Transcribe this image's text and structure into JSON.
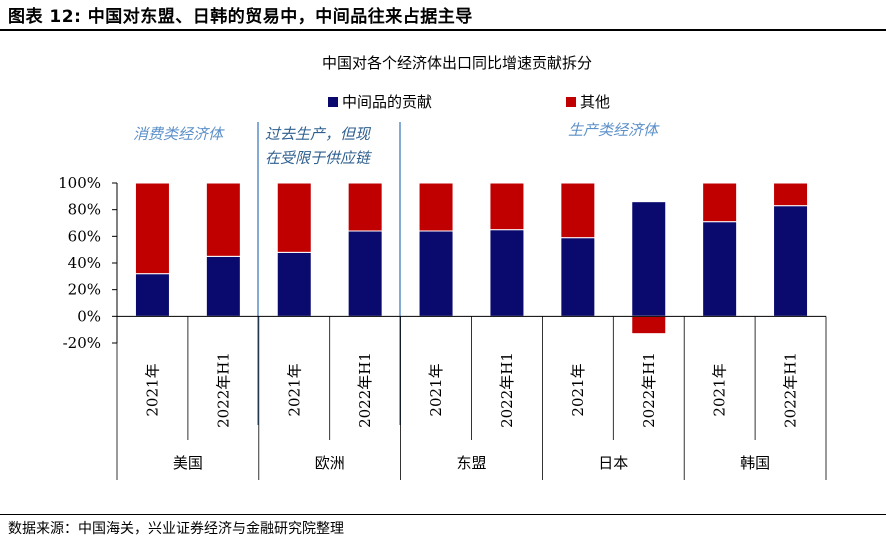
{
  "header": {
    "figure_title": "图表 12: 中国对东盟、日韩的贸易中，中间品往来占据主导",
    "source_note": "数据来源：中国海关，兴业证券经济与金融研究院整理"
  },
  "chart_data": {
    "type": "bar",
    "stacked": true,
    "title": "中国对各个经济体出口同比增速贡献拆分",
    "ylim": [
      -20,
      100
    ],
    "ytick_values": [
      -20,
      0,
      20,
      40,
      60,
      80,
      100
    ],
    "ytick_labels": [
      "-20%",
      "0%",
      "20%",
      "40%",
      "60%",
      "80%",
      "100%"
    ],
    "categories": [
      "2021年",
      "2022年H1",
      "2021年",
      "2022年H1",
      "2021年",
      "2022年H1",
      "2021年",
      "2022年H1",
      "2021年",
      "2022年H1"
    ],
    "groups": [
      "美国",
      "欧洲",
      "东盟",
      "日本",
      "韩国"
    ],
    "series": [
      {
        "name": "中间品的贡献",
        "color": "#0a0a6e",
        "values": [
          32,
          45,
          48,
          64,
          64,
          65,
          59,
          86,
          71,
          83
        ]
      },
      {
        "name": "其他",
        "color": "#c00000",
        "values": [
          68,
          55,
          52,
          36,
          36,
          35,
          41,
          -13,
          29,
          17
        ]
      }
    ],
    "annotations": [
      {
        "text": "消费类经济体",
        "color": "#5b8fc9"
      },
      {
        "text": "过去生产，但现",
        "color": "#2e5f8f"
      },
      {
        "text": "在受限于供应链",
        "color": "#2e5f8f"
      },
      {
        "text": "生产类经济体",
        "color": "#5b8fc9"
      }
    ]
  }
}
